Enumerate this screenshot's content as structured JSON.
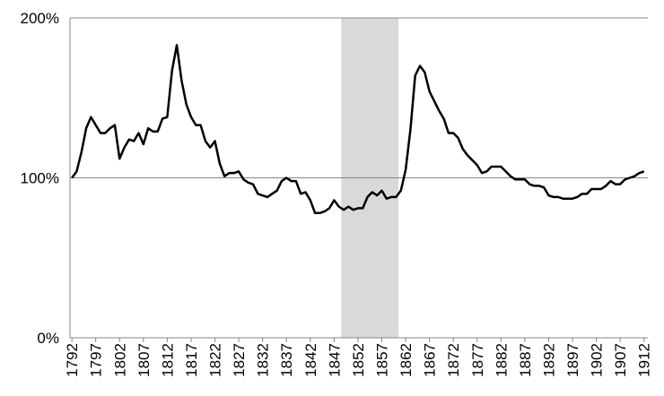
{
  "chart_data": {
    "type": "line",
    "x": [
      1792,
      1793,
      1794,
      1795,
      1796,
      1797,
      1798,
      1799,
      1800,
      1801,
      1802,
      1803,
      1804,
      1805,
      1806,
      1807,
      1808,
      1809,
      1810,
      1811,
      1812,
      1813,
      1814,
      1815,
      1816,
      1817,
      1818,
      1819,
      1820,
      1821,
      1822,
      1823,
      1824,
      1825,
      1826,
      1827,
      1828,
      1829,
      1830,
      1831,
      1832,
      1833,
      1834,
      1835,
      1836,
      1837,
      1838,
      1839,
      1840,
      1841,
      1842,
      1843,
      1844,
      1845,
      1846,
      1847,
      1848,
      1849,
      1850,
      1851,
      1852,
      1853,
      1854,
      1855,
      1856,
      1857,
      1858,
      1859,
      1860,
      1861,
      1862,
      1863,
      1864,
      1865,
      1866,
      1867,
      1868,
      1869,
      1870,
      1871,
      1872,
      1873,
      1874,
      1875,
      1876,
      1877,
      1878,
      1879,
      1880,
      1881,
      1882,
      1883,
      1884,
      1885,
      1886,
      1887,
      1888,
      1889,
      1890,
      1891,
      1892,
      1893,
      1894,
      1895,
      1896,
      1897,
      1898,
      1899,
      1900,
      1901,
      1902,
      1903,
      1904,
      1905,
      1906,
      1907,
      1908,
      1909,
      1910,
      1911,
      1912
    ],
    "series": [
      {
        "color": "#000000",
        "values": [
          100,
          104,
          116,
          131,
          138,
          133,
          128,
          128,
          131,
          133,
          112,
          119,
          124,
          123,
          128,
          121,
          131,
          129,
          129,
          137,
          138,
          167,
          183,
          161,
          146,
          138,
          133,
          133,
          123,
          119,
          123,
          109,
          101,
          103,
          103,
          104,
          99,
          97,
          96,
          90,
          89,
          88,
          90,
          92,
          98,
          100,
          98,
          98,
          90,
          91,
          86,
          78,
          78,
          79,
          81,
          86,
          82,
          80,
          82,
          80,
          81,
          81,
          88,
          91,
          89,
          92,
          87,
          88,
          88,
          92,
          105,
          130,
          164,
          170,
          166,
          154,
          148,
          142,
          137,
          128,
          128,
          125,
          118,
          114,
          111,
          108,
          103,
          104,
          107,
          107,
          107,
          104,
          101,
          99,
          99,
          99,
          96,
          95,
          95,
          94,
          89,
          88,
          88,
          87,
          87,
          87,
          88,
          90,
          90,
          93,
          93,
          93,
          95,
          98,
          96,
          96,
          99,
          100,
          101,
          103,
          104
        ]
      }
    ],
    "shaded": {
      "range": [
        1848.5,
        1860.5
      ],
      "color": "#d9d9d9"
    },
    "xlim": [
      1791.6,
      1912.8
    ],
    "xticks": [
      1792,
      1797,
      1802,
      1807,
      1812,
      1817,
      1822,
      1827,
      1832,
      1837,
      1842,
      1847,
      1852,
      1857,
      1862,
      1867,
      1872,
      1877,
      1882,
      1887,
      1892,
      1897,
      1902,
      1907,
      1912
    ],
    "ylim": [
      0,
      200
    ],
    "yticks": [
      {
        "value": 0,
        "label": "0%"
      },
      {
        "value": 100,
        "label": "100%"
      },
      {
        "value": 200,
        "label": "200%"
      }
    ],
    "grid": true
  }
}
